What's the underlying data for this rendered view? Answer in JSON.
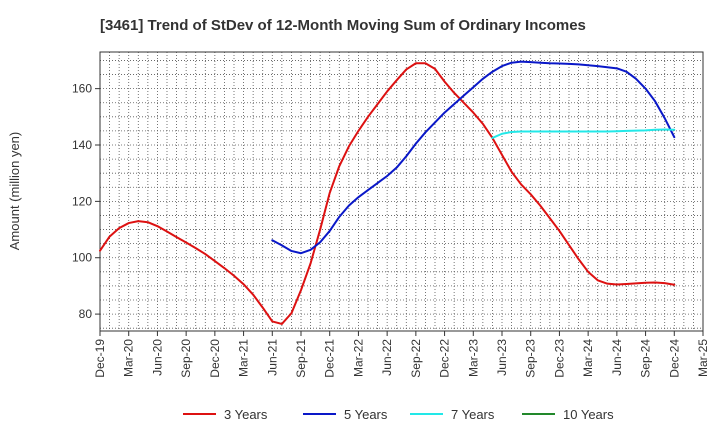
{
  "chart_data": {
    "type": "line",
    "title": "[3461]  Trend of StDev of 12-Month Moving Sum of Ordinary Incomes",
    "xlabel": "",
    "ylabel": "Amount (million yen)",
    "x_ticks": [
      "Dec-19",
      "Mar-20",
      "Jun-20",
      "Sep-20",
      "Dec-20",
      "Mar-21",
      "Jun-21",
      "Sep-21",
      "Dec-21",
      "Mar-22",
      "Jun-22",
      "Sep-22",
      "Dec-22",
      "Mar-23",
      "Jun-23",
      "Sep-23",
      "Dec-23",
      "Mar-24",
      "Jun-24",
      "Sep-24",
      "Dec-24",
      "Mar-25"
    ],
    "y_ticks": [
      80,
      100,
      120,
      140,
      160
    ],
    "ylim": [
      74,
      173
    ],
    "grid": true,
    "legend_position": "bottom",
    "series": [
      {
        "name": "3 Years",
        "color": "#dd1111",
        "points": [
          [
            "2019-12",
            102.5
          ],
          [
            "2020-01",
            107.5
          ],
          [
            "2020-02",
            110.5
          ],
          [
            "2020-03",
            112.3
          ],
          [
            "2020-04",
            113.0
          ],
          [
            "2020-05",
            112.6
          ],
          [
            "2020-06",
            111.2
          ],
          [
            "2020-07",
            109.3
          ],
          [
            "2020-08",
            107.3
          ],
          [
            "2020-09",
            105.4
          ],
          [
            "2020-10",
            103.4
          ],
          [
            "2020-11",
            101.3
          ],
          [
            "2020-12",
            98.8
          ],
          [
            "2021-01",
            96.3
          ],
          [
            "2021-02",
            93.6
          ],
          [
            "2021-03",
            90.6
          ],
          [
            "2021-04",
            86.9
          ],
          [
            "2021-05",
            82.3
          ],
          [
            "2021-06",
            77.4
          ],
          [
            "2021-07",
            76.5
          ],
          [
            "2021-08",
            80.3
          ],
          [
            "2021-09",
            88.5
          ],
          [
            "2021-10",
            98.0
          ],
          [
            "2021-11",
            110.0
          ],
          [
            "2021-12",
            123.0
          ],
          [
            "2022-01",
            132.5
          ],
          [
            "2022-02",
            139.5
          ],
          [
            "2022-03",
            145.0
          ],
          [
            "2022-04",
            150.0
          ],
          [
            "2022-05",
            154.5
          ],
          [
            "2022-06",
            159.0
          ],
          [
            "2022-07",
            163.0
          ],
          [
            "2022-08",
            166.8
          ],
          [
            "2022-09",
            169.0
          ],
          [
            "2022-10",
            169.0
          ],
          [
            "2022-11",
            167.0
          ],
          [
            "2022-12",
            162.5
          ],
          [
            "2023-01",
            158.5
          ],
          [
            "2023-02",
            155.0
          ],
          [
            "2023-03",
            151.5
          ],
          [
            "2023-04",
            147.5
          ],
          [
            "2023-05",
            142.5
          ],
          [
            "2023-06",
            136.5
          ],
          [
            "2023-07",
            130.5
          ],
          [
            "2023-08",
            126.0
          ],
          [
            "2023-09",
            122.5
          ],
          [
            "2023-10",
            118.5
          ],
          [
            "2023-11",
            114.0
          ],
          [
            "2023-12",
            109.5
          ],
          [
            "2024-01",
            104.5
          ],
          [
            "2024-02",
            99.5
          ],
          [
            "2024-03",
            95.0
          ],
          [
            "2024-04",
            92.0
          ],
          [
            "2024-05",
            90.8
          ],
          [
            "2024-06",
            90.5
          ],
          [
            "2024-07",
            90.7
          ],
          [
            "2024-08",
            90.9
          ],
          [
            "2024-09",
            91.1
          ],
          [
            "2024-10",
            91.2
          ],
          [
            "2024-11",
            91.0
          ],
          [
            "2024-12",
            90.4
          ]
        ]
      },
      {
        "name": "5 Years",
        "color": "#0a18c8",
        "points": [
          [
            "2021-06",
            106.2
          ],
          [
            "2021-07",
            104.4
          ],
          [
            "2021-08",
            102.4
          ],
          [
            "2021-09",
            101.6
          ],
          [
            "2021-10",
            102.8
          ],
          [
            "2021-11",
            105.5
          ],
          [
            "2021-12",
            109.5
          ],
          [
            "2022-01",
            114.5
          ],
          [
            "2022-02",
            118.5
          ],
          [
            "2022-03",
            121.5
          ],
          [
            "2022-04",
            124.0
          ],
          [
            "2022-05",
            126.5
          ],
          [
            "2022-06",
            129.0
          ],
          [
            "2022-07",
            132.0
          ],
          [
            "2022-08",
            136.0
          ],
          [
            "2022-09",
            140.5
          ],
          [
            "2022-10",
            144.5
          ],
          [
            "2022-11",
            148.0
          ],
          [
            "2022-12",
            151.5
          ],
          [
            "2023-01",
            154.5
          ],
          [
            "2023-02",
            157.5
          ],
          [
            "2023-03",
            160.5
          ],
          [
            "2023-04",
            163.5
          ],
          [
            "2023-05",
            166.0
          ],
          [
            "2023-06",
            168.0
          ],
          [
            "2023-07",
            169.2
          ],
          [
            "2023-08",
            169.6
          ],
          [
            "2023-09",
            169.4
          ],
          [
            "2023-10",
            169.2
          ],
          [
            "2023-11",
            169.0
          ],
          [
            "2023-12",
            168.9
          ],
          [
            "2024-01",
            168.8
          ],
          [
            "2024-02",
            168.6
          ],
          [
            "2024-03",
            168.3
          ],
          [
            "2024-04",
            168.0
          ],
          [
            "2024-05",
            167.6
          ],
          [
            "2024-06",
            167.2
          ],
          [
            "2024-07",
            166.0
          ],
          [
            "2024-08",
            163.5
          ],
          [
            "2024-09",
            160.0
          ],
          [
            "2024-10",
            155.5
          ],
          [
            "2024-11",
            149.5
          ],
          [
            "2024-12",
            142.8
          ]
        ]
      },
      {
        "name": "7 Years",
        "color": "#22e8e8",
        "points": [
          [
            "2023-05",
            142.5
          ],
          [
            "2023-06",
            144.0
          ],
          [
            "2023-07",
            144.6
          ],
          [
            "2023-08",
            144.8
          ],
          [
            "2023-09",
            144.8
          ],
          [
            "2023-10",
            144.8
          ],
          [
            "2023-11",
            144.8
          ],
          [
            "2023-12",
            144.8
          ],
          [
            "2024-01",
            144.8
          ],
          [
            "2024-02",
            144.8
          ],
          [
            "2024-03",
            144.8
          ],
          [
            "2024-04",
            144.8
          ],
          [
            "2024-05",
            144.8
          ],
          [
            "2024-06",
            144.9
          ],
          [
            "2024-07",
            145.0
          ],
          [
            "2024-08",
            145.1
          ],
          [
            "2024-09",
            145.2
          ],
          [
            "2024-10",
            145.4
          ],
          [
            "2024-11",
            145.5
          ],
          [
            "2024-12",
            145.4
          ]
        ]
      },
      {
        "name": "10 Years",
        "color": "#22882b",
        "points": []
      }
    ]
  }
}
